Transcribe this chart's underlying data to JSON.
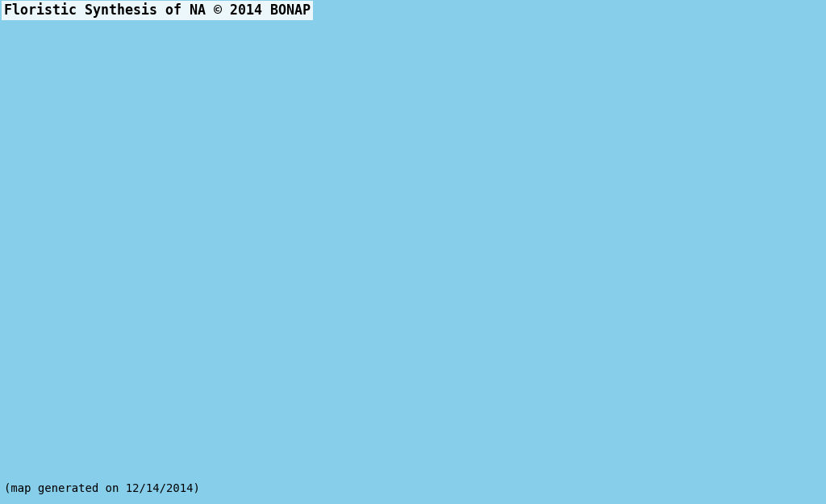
{
  "title": "Floristic Synthesis of NA © 2014 BONAP",
  "subtitle": "(map generated on 12/14/2014)",
  "background_color": "#87CEEB",
  "water_color": "#87CEEB",
  "title_fontsize": 12,
  "subtitle_fontsize": 10,
  "colors": {
    "native_documented": "#00CC00",
    "native_rare": "#00FF00",
    "not_present_native": "#1A5200",
    "introduced": "#CC8800",
    "extirpated": "#FFFF00",
    "water": "#87CEEB",
    "not_present": "#1A5200",
    "mexico": "#C0C0C0"
  }
}
